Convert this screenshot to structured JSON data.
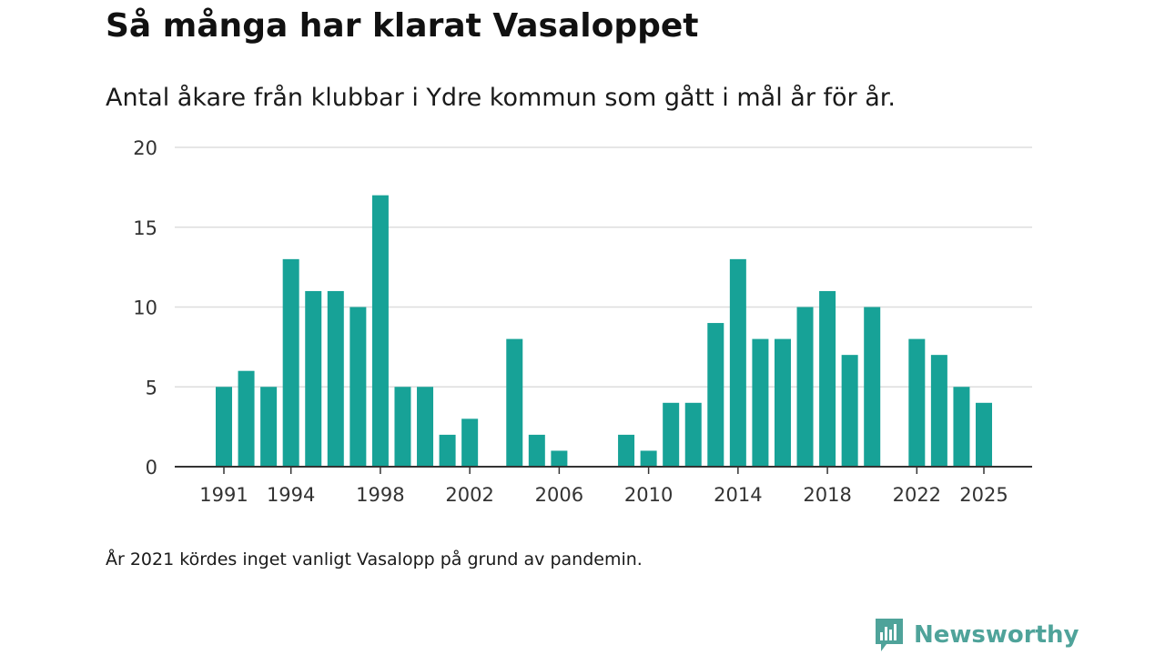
{
  "title": "Så många har klarat Vasaloppet",
  "subtitle": "Antal åkare från klubbar i Ydre kommun som gått i mål år för år.",
  "note": "År 2021 kördes inget vanligt Vasalopp på grund av pandemin.",
  "brand": {
    "name": "Newsworthy",
    "icon": "newsworthy-logo-icon"
  },
  "colors": {
    "bar": "#17a297",
    "brand": "#4fa39a",
    "grid": "#dddddd",
    "axis": "#333333"
  },
  "chart_data": {
    "type": "bar",
    "title": "Så många har klarat Vasaloppet",
    "xlabel": "",
    "ylabel": "",
    "ylim": [
      0,
      20
    ],
    "yticks": [
      0,
      5,
      10,
      15,
      20
    ],
    "xticks": [
      1991,
      1994,
      1998,
      2002,
      2006,
      2010,
      2014,
      2018,
      2022,
      2025
    ],
    "x_range": [
      1991,
      2025
    ],
    "grid": true,
    "categories": [
      1991,
      1992,
      1993,
      1994,
      1995,
      1996,
      1997,
      1998,
      1999,
      2000,
      2001,
      2002,
      2003,
      2004,
      2005,
      2006,
      2007,
      2008,
      2009,
      2010,
      2011,
      2012,
      2013,
      2014,
      2015,
      2016,
      2017,
      2018,
      2019,
      2020,
      2021,
      2022,
      2023,
      2024,
      2025
    ],
    "values": [
      5,
      6,
      5,
      13,
      11,
      11,
      10,
      17,
      5,
      5,
      2,
      3,
      0,
      8,
      2,
      1,
      0,
      0,
      2,
      1,
      4,
      4,
      9,
      13,
      8,
      8,
      10,
      11,
      7,
      10,
      0,
      8,
      7,
      5,
      4
    ]
  }
}
